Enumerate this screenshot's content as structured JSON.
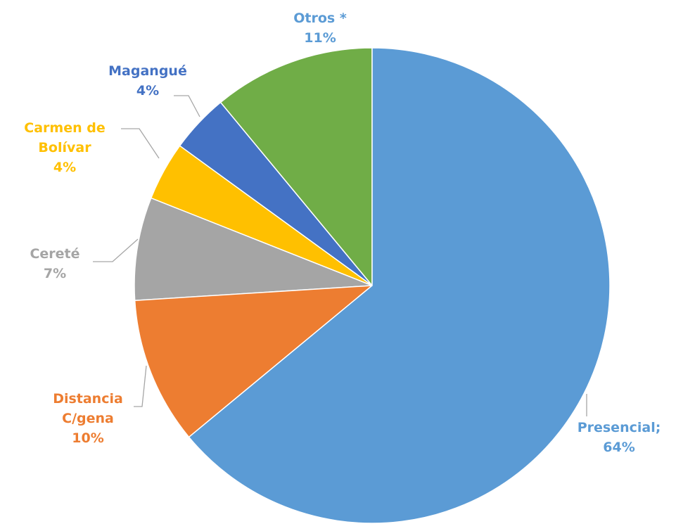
{
  "chart_data": {
    "type": "pie",
    "categories": [
      "Presencial;",
      "Distancia C/gena",
      "Cereté",
      "Carmen de Bolívar",
      "Magangué",
      "Otros *"
    ],
    "values": [
      64,
      10,
      7,
      4,
      4,
      11
    ],
    "value_labels": [
      "64%",
      "10%",
      "7%",
      "4%",
      "4%",
      "11%"
    ],
    "colors": [
      "#5b9bd5",
      "#ed7d31",
      "#a5a5a5",
      "#ffc000",
      "#4472c4",
      "#70ad47"
    ],
    "label_colors": [
      "#5b9bd5",
      "#ed7d31",
      "#a5a5a5",
      "#ffc000",
      "#4472c4",
      "#5b9bd5"
    ]
  }
}
